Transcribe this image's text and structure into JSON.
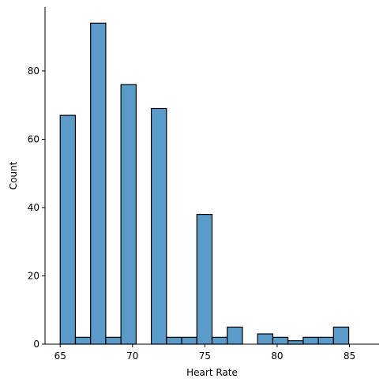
{
  "chart_data": {
    "type": "bar",
    "title": "",
    "xlabel": "Heart Rate",
    "ylabel": "Count",
    "xlim": [
      63.95,
      87.05
    ],
    "ylim": [
      0,
      98.7
    ],
    "bin_start": 65,
    "bin_width": 1.05,
    "values": [
      67,
      2,
      94,
      2,
      76,
      0,
      69,
      2,
      2,
      38,
      2,
      5,
      0,
      3,
      2,
      1,
      2,
      2,
      5
    ],
    "x_ticks": [
      65,
      70,
      75,
      80,
      85
    ],
    "y_ticks": [
      0,
      20,
      40,
      60,
      80
    ],
    "bar_color": "#5a9bc9",
    "edge_color": "#000000",
    "grid": false
  }
}
